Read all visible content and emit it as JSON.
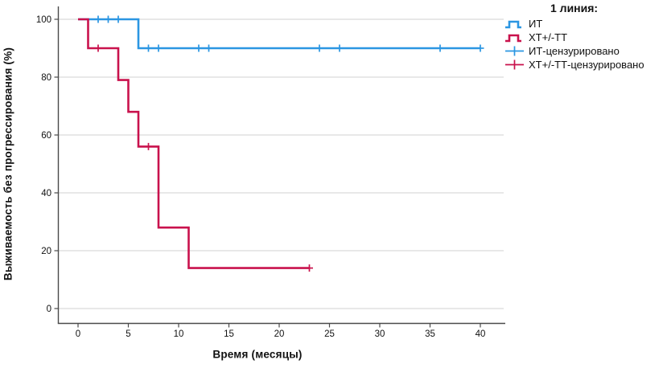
{
  "chart_data": {
    "type": "line",
    "subtype": "kaplan-meier-step-survival",
    "title": "",
    "xlabel": "Время (месяцы)",
    "ylabel": "Выживаемость без прогрессирования (%)",
    "xlim": [
      -2,
      42.5
    ],
    "ylim": [
      0,
      100
    ],
    "x_ticks": [
      0,
      5,
      10,
      15,
      20,
      25,
      30,
      35,
      40
    ],
    "y_ticks": [
      0,
      20,
      40,
      60,
      80,
      100
    ],
    "grid": "horizontal-only",
    "legend_position": "outside-top-right",
    "legend_title": "1 линия:",
    "series": [
      {
        "name": "ИТ",
        "color": "#2B96E2",
        "step_points": [
          [
            0,
            100
          ],
          [
            6,
            100
          ],
          [
            6,
            90
          ],
          [
            40,
            90
          ]
        ],
        "censored": [
          [
            2,
            100
          ],
          [
            3,
            100
          ],
          [
            4,
            100
          ],
          [
            7,
            90
          ],
          [
            8,
            90
          ],
          [
            12,
            90
          ],
          [
            13,
            90
          ],
          [
            24,
            90
          ],
          [
            26,
            90
          ],
          [
            36,
            90
          ],
          [
            40,
            90
          ]
        ]
      },
      {
        "name": "ХТ+/-ТТ",
        "color": "#C9124D",
        "step_points": [
          [
            0,
            100
          ],
          [
            1,
            100
          ],
          [
            1,
            90
          ],
          [
            4,
            90
          ],
          [
            4,
            79
          ],
          [
            5,
            79
          ],
          [
            5,
            68
          ],
          [
            6,
            68
          ],
          [
            6,
            56
          ],
          [
            8,
            56
          ],
          [
            8,
            28
          ],
          [
            11,
            28
          ],
          [
            11,
            14
          ],
          [
            23,
            14
          ]
        ],
        "censored": [
          [
            2,
            90
          ],
          [
            7,
            56
          ],
          [
            23,
            14
          ]
        ]
      }
    ],
    "legend": [
      {
        "label": "ИТ",
        "type": "line",
        "color": "#2B96E2"
      },
      {
        "label": "ХТ+/-ТТ",
        "type": "line",
        "color": "#C9124D"
      },
      {
        "label": "ИТ-цензурировано",
        "type": "censor",
        "color": "#2B96E2"
      },
      {
        "label": "ХТ+/-ТТ-цензурировано",
        "type": "censor",
        "color": "#C9124D"
      }
    ]
  },
  "colors": {
    "it_blue": "#2B96E2",
    "ht_red": "#C9124D",
    "gridline": "#D9D9D9",
    "axis_line": "#4A4A4A",
    "text": "#111111"
  }
}
